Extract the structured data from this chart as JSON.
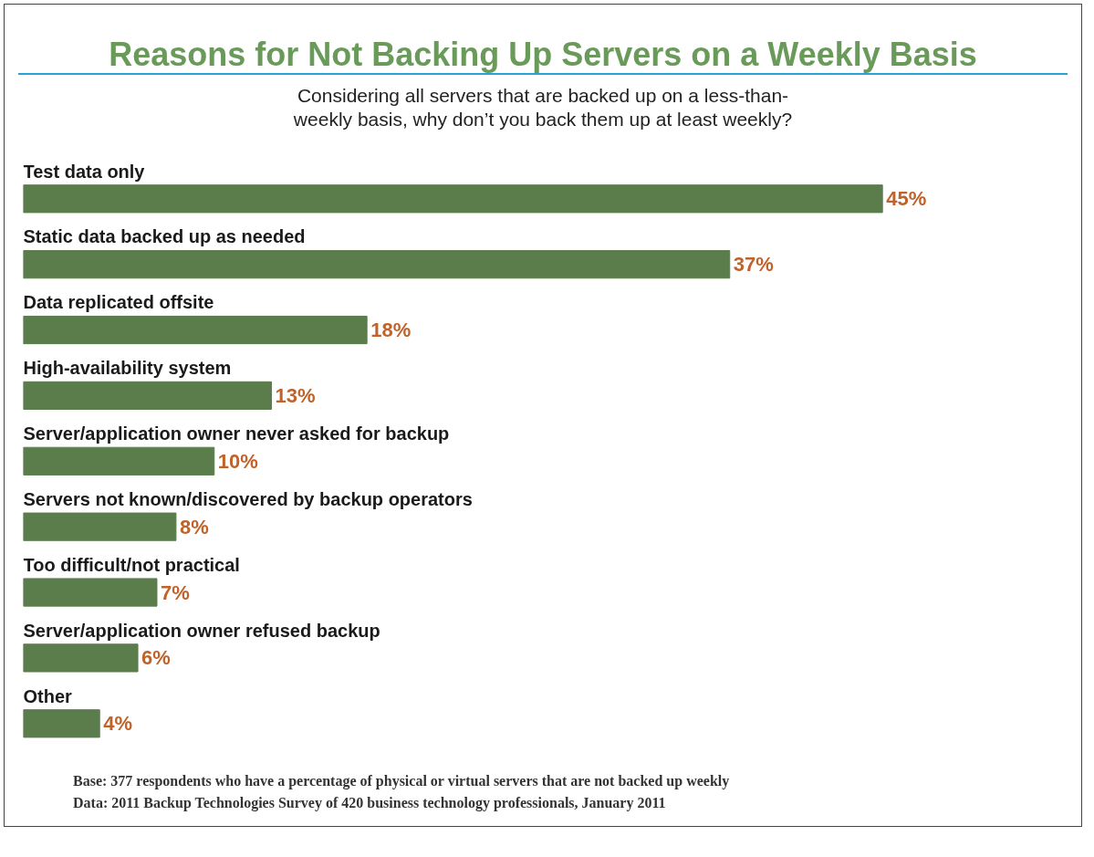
{
  "chart_data": {
    "type": "bar",
    "orientation": "horizontal",
    "title": "Reasons for Not Backing Up Servers on a Weekly Basis",
    "subtitle": "Considering all servers that are backed up on a less-than-weekly basis, why don’t you back them up at least weekly?",
    "categories": [
      "Test data only",
      "Static data backed up as needed",
      "Data replicated offsite",
      "High-availability system",
      "Server/application owner never asked for backup",
      "Servers not known/discovered by backup operators",
      "Too difficult/not practical",
      "Server/application owner refused backup",
      "Other"
    ],
    "values": [
      45,
      37,
      18,
      13,
      10,
      8,
      7,
      6,
      4
    ],
    "value_labels": [
      "45%",
      "37%",
      "18%",
      "13%",
      "10%",
      "8%",
      "7%",
      "6%",
      "4%"
    ],
    "color": "#5a7d4b",
    "annotations": [
      "Base:  377 respondents who have a percentage of physical or virtual servers that are not backed up weekly",
      "Data: 2011 Backup Technologies Survey of 420 business technology professionals, January 2011"
    ]
  }
}
